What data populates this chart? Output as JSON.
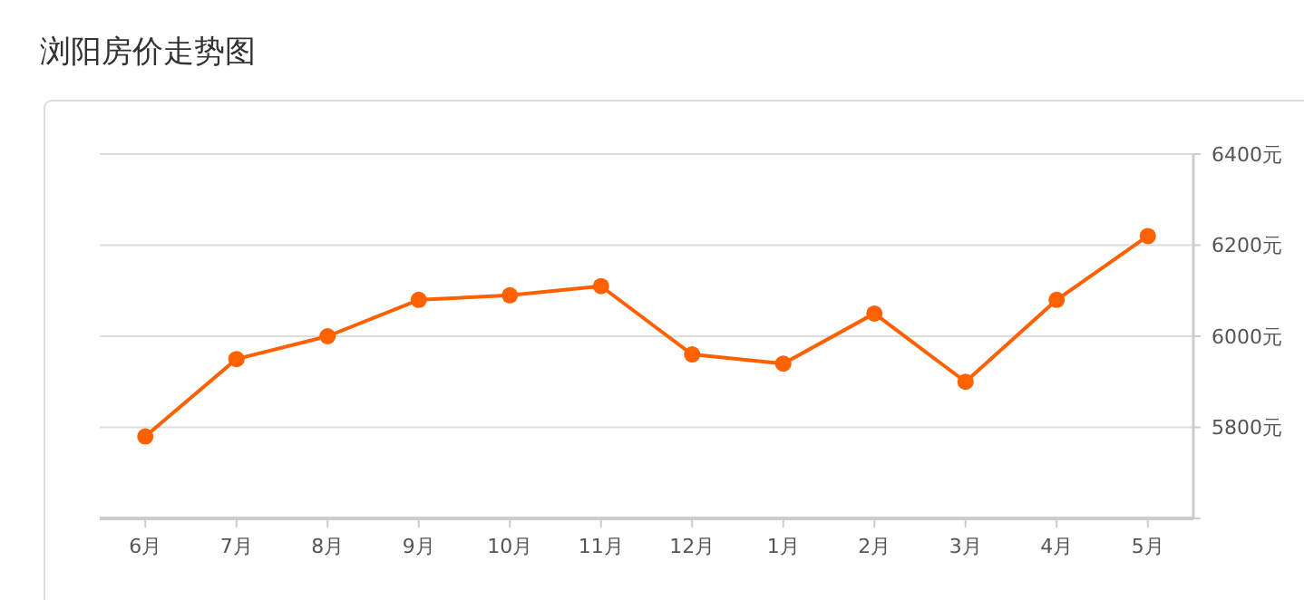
{
  "chart_data": {
    "type": "line",
    "title": "浏阳房价走势图",
    "categories": [
      "6月",
      "7月",
      "8月",
      "9月",
      "10月",
      "11月",
      "12月",
      "1月",
      "2月",
      "3月",
      "4月",
      "5月"
    ],
    "series": [
      {
        "color": "#ff6000",
        "values": [
          5780,
          5950,
          6000,
          6080,
          6090,
          6110,
          5960,
          5940,
          6050,
          5900,
          6080,
          6220
        ]
      }
    ],
    "ylim": [
      5600,
      6400
    ],
    "yticks": [
      {
        "value": 5600,
        "label": null
      },
      {
        "value": 5800,
        "label": "5800元"
      },
      {
        "value": 6000,
        "label": "6000元"
      },
      {
        "value": 6200,
        "label": "6200元"
      },
      {
        "value": 6400,
        "label": "6400元"
      }
    ],
    "grid": "y",
    "marker": "circle"
  }
}
